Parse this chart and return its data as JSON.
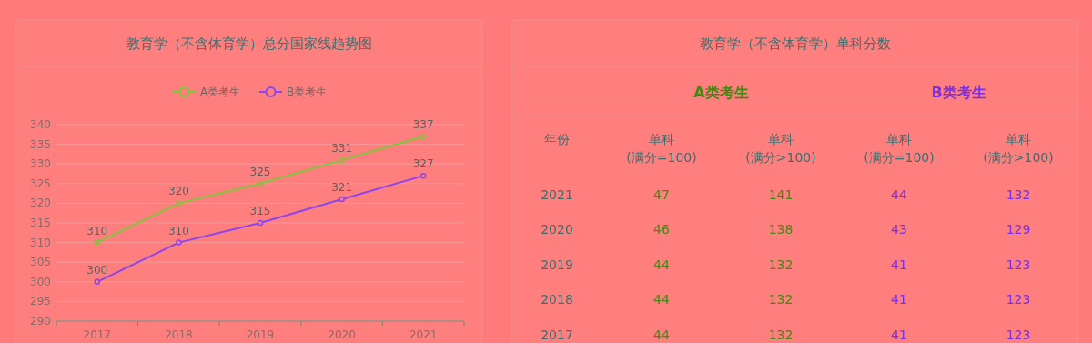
{
  "chart_data": [
    {
      "type": "line",
      "title": "教育学（不含体育学）总分国家线趋势图",
      "categories": [
        "2017",
        "2018",
        "2019",
        "2020",
        "2021"
      ],
      "series": [
        {
          "name": "A类考生",
          "color": "#7dc73a",
          "values": [
            310,
            320,
            325,
            331,
            337
          ]
        },
        {
          "name": "B类考生",
          "color": "#8c45ee",
          "values": [
            300,
            310,
            315,
            321,
            327
          ]
        }
      ],
      "ylim": [
        290,
        340
      ],
      "yticks": [
        290,
        295,
        300,
        305,
        310,
        315,
        320,
        325,
        330,
        335,
        340
      ],
      "grid": "y",
      "legend": "top",
      "marker": "circle",
      "data_labels": true
    },
    {
      "type": "heatmap",
      "title": "教育学（不含体育学）单科分数",
      "ylabel": "年份",
      "annotations": [
        "A类考生",
        "B类考生"
      ],
      "data_labels": true,
      "colors": [
        "#3f8a10",
        "#3f8a10",
        "#7a2fe0",
        "#7a2fe0"
      ],
      "categories": [
        "单科\n(满分=100)",
        "单科\n(满分>100)",
        "单科\n(满分=100)",
        "单科\n(满分>100)"
      ],
      "y_categories": [
        "2021",
        "2020",
        "2019",
        "2018",
        "2017"
      ],
      "cells": [
        [
          47,
          141,
          44,
          132
        ],
        [
          46,
          138,
          43,
          129
        ],
        [
          44,
          132,
          41,
          123
        ],
        [
          44,
          132,
          41,
          123
        ],
        [
          44,
          132,
          41,
          123
        ]
      ]
    }
  ]
}
